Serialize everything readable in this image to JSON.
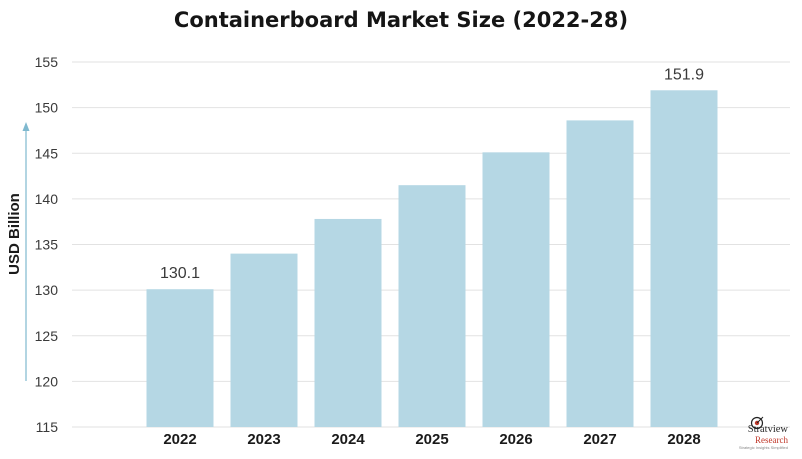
{
  "chart_data": {
    "type": "bar",
    "title": "Containerboard Market Size (2022-28)",
    "xlabel": "",
    "ylabel": "USD Billion",
    "categories": [
      "2022",
      "2023",
      "2024",
      "2025",
      "2026",
      "2027",
      "2028"
    ],
    "values": [
      130.1,
      134.0,
      137.8,
      141.5,
      145.1,
      148.6,
      151.9
    ],
    "data_labels": {
      "2022": "130.1",
      "2028": "151.9"
    },
    "ylim": [
      115,
      155
    ],
    "yticks": [
      115,
      120,
      125,
      130,
      135,
      140,
      145,
      150,
      155
    ],
    "grid": true,
    "colors": {
      "bar": "#b5d7e4",
      "grid": "#e2e2e2",
      "axis_arrow": "#7fb9cf"
    }
  },
  "branding": {
    "name": "Stratview",
    "sub": "Research",
    "tagline": "Strategic Insights Simplified"
  }
}
